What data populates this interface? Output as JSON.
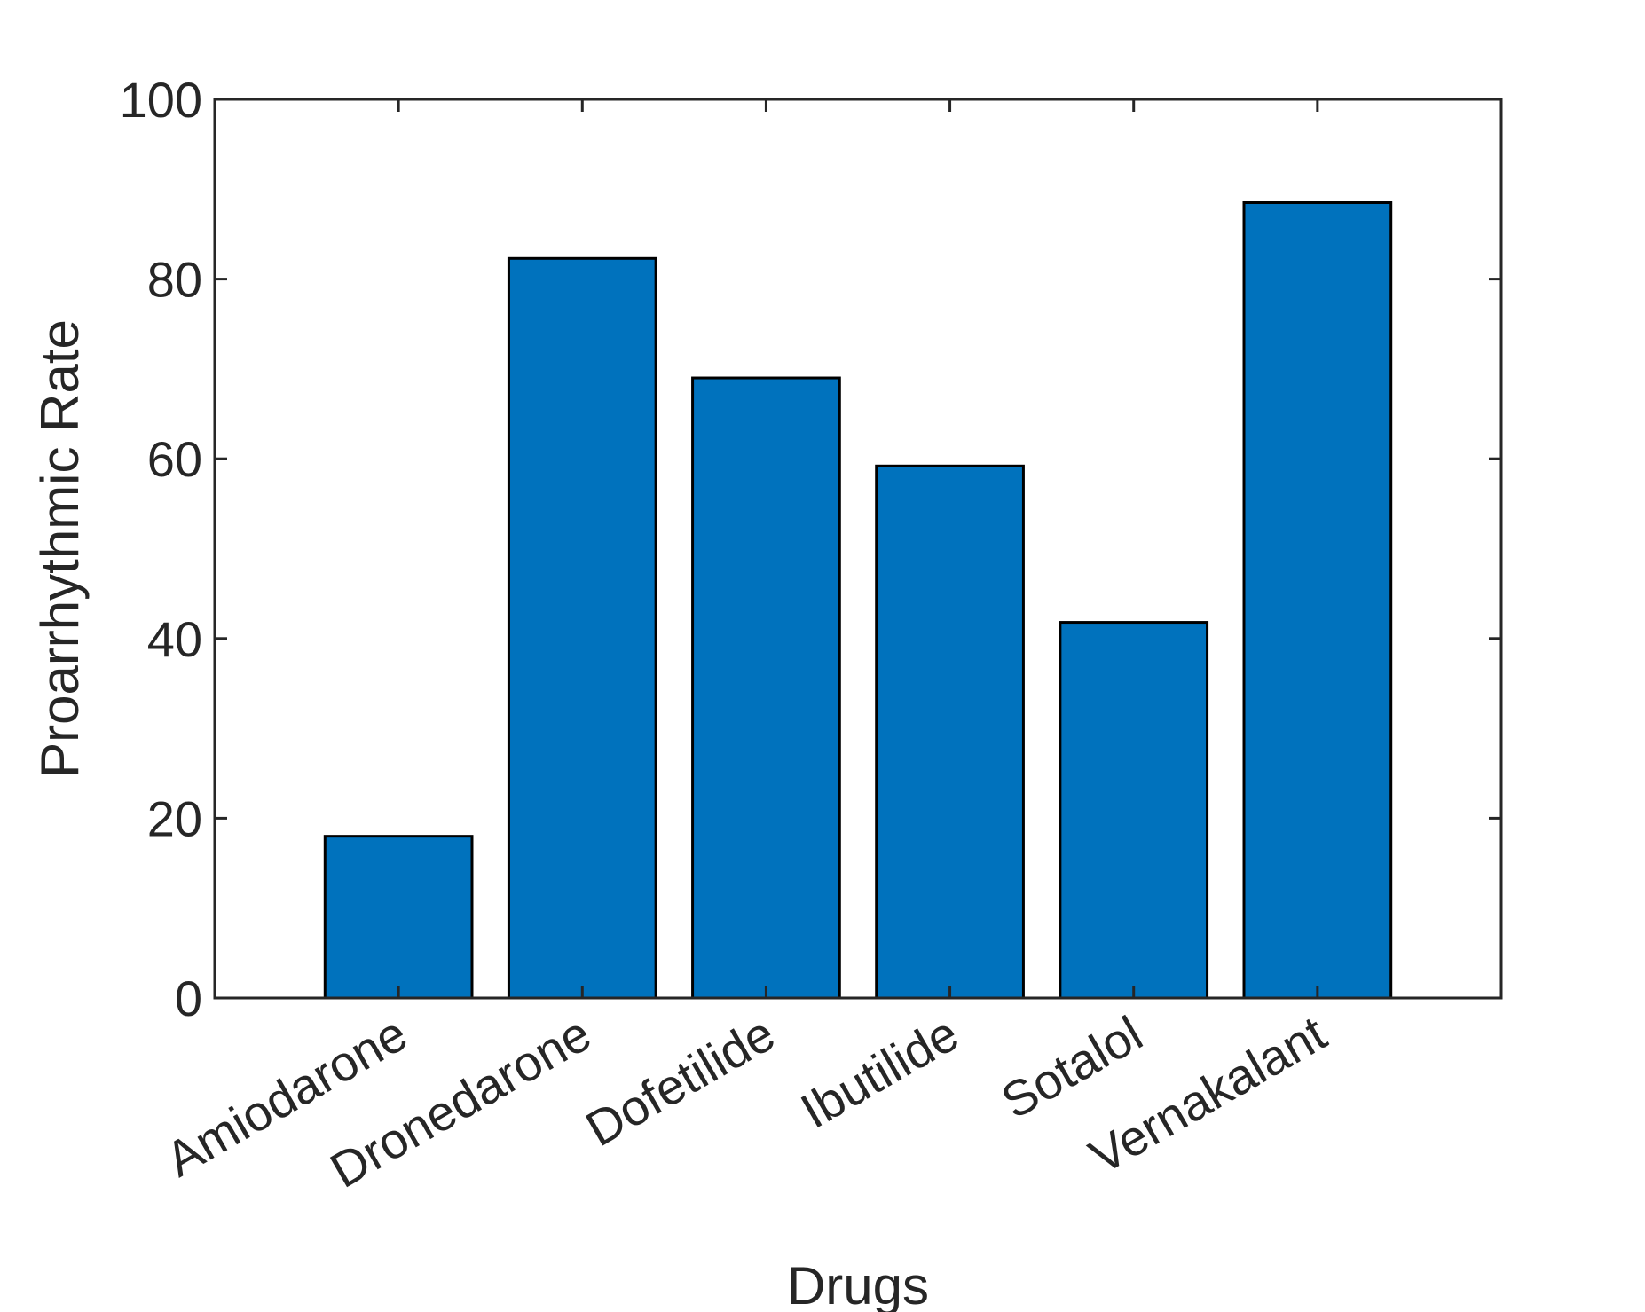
{
  "chart_data": {
    "type": "bar",
    "categories": [
      "Amiodarone",
      "Dronedarone",
      "Dofetilide",
      "Ibutilide",
      "Sotalol",
      "Vernakalant"
    ],
    "values": [
      18,
      82.3,
      69,
      59.2,
      41.8,
      88.5
    ],
    "xlabel": "Drugs",
    "ylabel": "Proarrhythmic Rate",
    "ylim": [
      0,
      100
    ],
    "yticks": [
      0,
      20,
      40,
      60,
      80,
      100
    ],
    "grid": false,
    "legend": "none",
    "bar_color": "#0072BD",
    "axis_color": "#262626"
  }
}
